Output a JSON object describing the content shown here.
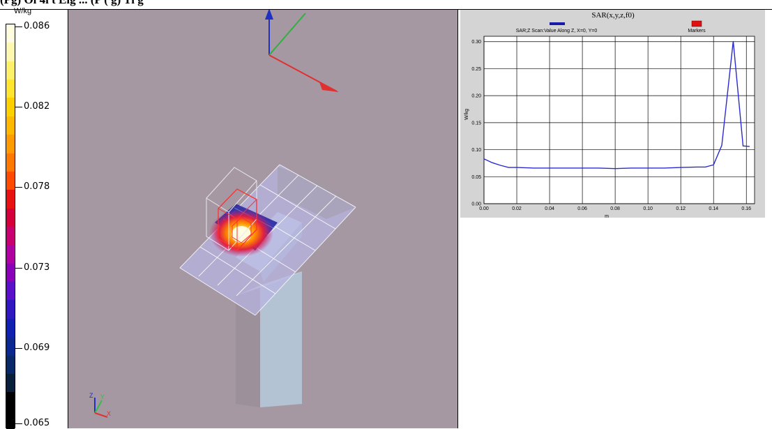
{
  "header": {
    "text": "(Pg) Oi 4i  t Eig ... (P (  g) Ti  g"
  },
  "colorbar": {
    "unit": "W/kg",
    "ticks": [
      "0.086",
      "0.082",
      "0.078",
      "0.073",
      "0.069",
      "0.065"
    ],
    "colors": [
      "#fffde0",
      "#fff8b0",
      "#fff06a",
      "#ffe430",
      "#ffd000",
      "#ffb800",
      "#ff9a00",
      "#ff7800",
      "#ff4a00",
      "#e81010",
      "#d4003c",
      "#c80070",
      "#b000a0",
      "#8a00b8",
      "#5a10c8",
      "#3018c0",
      "#1020b0",
      "#0a2890",
      "#082868",
      "#08203c",
      "#000000",
      "#000000"
    ]
  },
  "viewport": {
    "name": "3D SAR view",
    "icons": [
      "axis-triad-icon",
      "mini-axis-triad-icon"
    ],
    "mini_axis_labels": {
      "z": "Z",
      "y": "Y",
      "x": "X"
    }
  },
  "chart_data": {
    "type": "line",
    "title": "SAR(x,y,z,f0)",
    "legend": [
      {
        "name": "SAR;Z Scan:Value Along Z, X=0, Y=0",
        "color": "#1a1aa8"
      },
      {
        "name": "Markers",
        "color": "#e01010"
      }
    ],
    "xlabel": "m",
    "ylabel": "W/kg",
    "xlim": [
      0.0,
      0.165
    ],
    "ylim": [
      0.0,
      0.31
    ],
    "x_ticks": [
      "0.00",
      "0.02",
      "0.04",
      "0.06",
      "0.08",
      "0.10",
      "0.12",
      "0.14",
      "0.16"
    ],
    "y_ticks": [
      "0.00",
      "0.05",
      "0.10",
      "0.15",
      "0.20",
      "0.25",
      "0.30"
    ],
    "series": [
      {
        "name": "SAR;Z Scan:Value Along Z, X=0, Y=0",
        "x": [
          0.0,
          0.005,
          0.01,
          0.015,
          0.02,
          0.03,
          0.04,
          0.05,
          0.06,
          0.07,
          0.08,
          0.09,
          0.1,
          0.11,
          0.12,
          0.13,
          0.135,
          0.14,
          0.145,
          0.152,
          0.158,
          0.162
        ],
        "y": [
          0.083,
          0.076,
          0.071,
          0.067,
          0.067,
          0.066,
          0.066,
          0.066,
          0.066,
          0.066,
          0.065,
          0.066,
          0.066,
          0.066,
          0.067,
          0.068,
          0.068,
          0.072,
          0.108,
          0.301,
          0.107,
          0.106
        ]
      }
    ]
  }
}
